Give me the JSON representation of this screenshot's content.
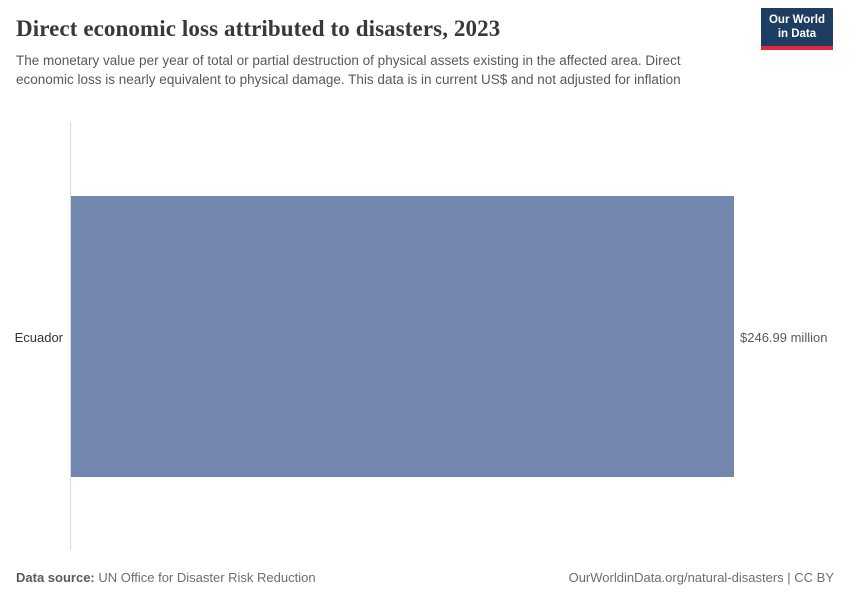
{
  "header": {
    "title": "Direct economic loss attributed to disasters, 2023",
    "subtitle": "The monetary value per year of total or partial destruction of physical assets existing in the affected area. Direct economic loss is nearly equivalent to physical damage. This data is in current US$ and not adjusted for inflation",
    "logo": {
      "line1": "Our World",
      "line2": "in Data"
    }
  },
  "chart_data": {
    "type": "bar",
    "orientation": "horizontal",
    "title": "Direct economic loss attributed to disasters, 2023",
    "categories": [
      "Ecuador"
    ],
    "values": [
      246.99
    ],
    "value_labels": [
      "$246.99 million"
    ],
    "unit": "current US$, million",
    "xlim": [
      0,
      246.99
    ],
    "grid": false,
    "legend": false,
    "bar_color": "#7286ae"
  },
  "footer": {
    "datasource_label": "Data source:",
    "datasource_value": " UN Office for Disaster Risk Reduction",
    "attribution": "OurWorldinData.org/natural-disasters | CC BY"
  }
}
